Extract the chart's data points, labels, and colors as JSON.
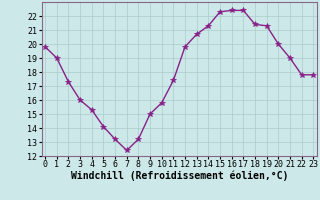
{
  "x": [
    0,
    1,
    2,
    3,
    4,
    5,
    6,
    7,
    8,
    9,
    10,
    11,
    12,
    13,
    14,
    15,
    16,
    17,
    18,
    19,
    20,
    21,
    22,
    23
  ],
  "y": [
    19.8,
    19.0,
    17.3,
    16.0,
    15.3,
    14.1,
    13.2,
    12.4,
    13.2,
    15.0,
    15.8,
    17.4,
    19.8,
    20.7,
    21.3,
    22.3,
    22.4,
    22.4,
    21.4,
    21.3,
    20.0,
    19.0,
    17.8,
    17.8
  ],
  "line_color": "#882288",
  "marker": "*",
  "marker_size": 4,
  "bg_color": "#cce8e8",
  "grid_color": "#aacccc",
  "xlabel": "Windchill (Refroidissement éolien,°C)",
  "xlabel_fontsize": 7,
  "tick_fontsize": 6,
  "ylim": [
    12,
    23
  ],
  "yticks": [
    12,
    13,
    14,
    15,
    16,
    17,
    18,
    19,
    20,
    21,
    22
  ],
  "xtick_labels": [
    "0",
    "1",
    "2",
    "3",
    "4",
    "5",
    "6",
    "7",
    "8",
    "9",
    "10",
    "11",
    "12",
    "13",
    "14",
    "15",
    "16",
    "17",
    "18",
    "19",
    "20",
    "21",
    "22",
    "23"
  ],
  "line_width": 1.0,
  "spine_color": "#886688"
}
